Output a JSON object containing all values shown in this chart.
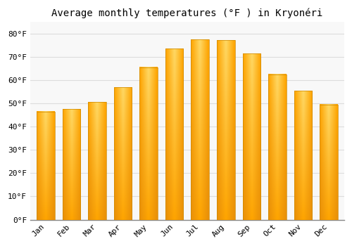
{
  "title": "Average monthly temperatures (°F ) in Kryonéri",
  "months": [
    "Jan",
    "Feb",
    "Mar",
    "Apr",
    "May",
    "Jun",
    "Jul",
    "Aug",
    "Sep",
    "Oct",
    "Nov",
    "Dec"
  ],
  "values": [
    46.5,
    47.5,
    50.5,
    57.0,
    65.5,
    73.5,
    77.5,
    77.0,
    71.5,
    62.5,
    55.5,
    49.5
  ],
  "bar_color_main": "#FFA500",
  "bar_color_light": "#FFD966",
  "bar_edge_color": "#CC8800",
  "background_color": "#FFFFFF",
  "plot_bg_color": "#F8F8F8",
  "grid_color": "#DDDDDD",
  "ylim": [
    0,
    85
  ],
  "yticks": [
    0,
    10,
    20,
    30,
    40,
    50,
    60,
    70,
    80
  ],
  "title_fontsize": 10,
  "tick_fontsize": 8,
  "font_family": "monospace"
}
